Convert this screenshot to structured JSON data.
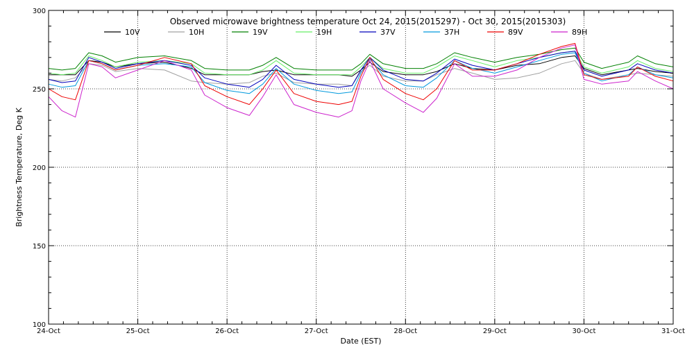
{
  "chart_data": {
    "type": "line",
    "title": "Observed microwave brightness temperature Oct 24, 2015(2015297) - Oct 30, 2015(2015303)",
    "xlabel": "Date (EST)",
    "ylabel": "Brightness Temperature, Deg K",
    "xlim": [
      0,
      7
    ],
    "ylim": [
      100,
      300
    ],
    "x_ticks": [
      {
        "value": 0,
        "label": "24-Oct"
      },
      {
        "value": 1,
        "label": "25-Oct"
      },
      {
        "value": 2,
        "label": "26-Oct"
      },
      {
        "value": 3,
        "label": "27-Oct"
      },
      {
        "value": 4,
        "label": "28-Oct"
      },
      {
        "value": 5,
        "label": "29-Oct"
      },
      {
        "value": 6,
        "label": "30-Oct"
      },
      {
        "value": 7,
        "label": "31-Oct"
      }
    ],
    "y_ticks": [
      {
        "value": 100,
        "label": "100"
      },
      {
        "value": 150,
        "label": "150"
      },
      {
        "value": 200,
        "label": "200"
      },
      {
        "value": 250,
        "label": "250"
      },
      {
        "value": 300,
        "label": "300"
      }
    ],
    "grid": true,
    "legend_position": "top",
    "x": [
      0,
      0.15,
      0.3,
      0.45,
      0.6,
      0.75,
      1.0,
      1.3,
      1.6,
      1.75,
      2.0,
      2.25,
      2.4,
      2.55,
      2.75,
      3.0,
      3.25,
      3.4,
      3.5,
      3.6,
      3.75,
      4.0,
      4.2,
      4.35,
      4.55,
      4.75,
      5.0,
      5.25,
      5.5,
      5.75,
      5.9,
      6.0,
      6.2,
      6.5,
      6.6,
      6.8,
      7.0
    ],
    "series": [
      {
        "name": "10V",
        "color": "#000000",
        "values": [
          259,
          259,
          259,
          268,
          267,
          264,
          266,
          267,
          263,
          259,
          259,
          259,
          261,
          262,
          259,
          259,
          259,
          258,
          262,
          267,
          261,
          259,
          259,
          261,
          266,
          263,
          262,
          265,
          266,
          270,
          271,
          263,
          259,
          262,
          263,
          261,
          260
        ]
      },
      {
        "name": "10H",
        "color": "#a0a0a0",
        "values": [
          256,
          255,
          257,
          266,
          265,
          261,
          263,
          262,
          255,
          254,
          253,
          254,
          258,
          260,
          254,
          253,
          253,
          252,
          261,
          265,
          258,
          255,
          255,
          259,
          263,
          260,
          256,
          257,
          260,
          266,
          268,
          260,
          256,
          259,
          260,
          259,
          258
        ]
      },
      {
        "name": "19V",
        "color": "#008000",
        "values": [
          263,
          262,
          263,
          273,
          271,
          267,
          270,
          271,
          268,
          263,
          262,
          262,
          265,
          270,
          263,
          262,
          262,
          262,
          266,
          272,
          266,
          263,
          263,
          266,
          273,
          270,
          267,
          270,
          272,
          275,
          276,
          267,
          263,
          267,
          271,
          266,
          264
        ]
      },
      {
        "name": "19H",
        "color": "#66ee66",
        "values": [
          260,
          259,
          260,
          271,
          268,
          264,
          267,
          268,
          266,
          260,
          259,
          259,
          262,
          268,
          260,
          259,
          259,
          259,
          264,
          270,
          263,
          260,
          260,
          264,
          271,
          268,
          264,
          268,
          270,
          273,
          274,
          264,
          260,
          264,
          268,
          263,
          261
        ]
      },
      {
        "name": "37V",
        "color": "#0000bb",
        "values": [
          256,
          254,
          255,
          270,
          267,
          263,
          266,
          268,
          265,
          257,
          253,
          251,
          256,
          265,
          256,
          253,
          251,
          252,
          262,
          270,
          262,
          256,
          255,
          260,
          269,
          265,
          262,
          266,
          270,
          273,
          274,
          262,
          258,
          262,
          266,
          262,
          260
        ]
      },
      {
        "name": "37H",
        "color": "#0099dd",
        "values": [
          253,
          251,
          252,
          268,
          266,
          262,
          265,
          266,
          264,
          254,
          249,
          247,
          253,
          263,
          253,
          249,
          247,
          248,
          260,
          269,
          259,
          252,
          251,
          257,
          268,
          263,
          260,
          264,
          268,
          272,
          273,
          260,
          255,
          259,
          264,
          259,
          257
        ]
      },
      {
        "name": "89V",
        "color": "#ee0000",
        "values": [
          250,
          245,
          243,
          268,
          266,
          262,
          265,
          270,
          266,
          252,
          245,
          240,
          250,
          262,
          247,
          242,
          240,
          242,
          258,
          270,
          256,
          247,
          243,
          250,
          268,
          262,
          262,
          266,
          272,
          277,
          279,
          259,
          256,
          258,
          264,
          258,
          255
        ]
      },
      {
        "name": "89H",
        "color": "#cc22cc",
        "values": [
          245,
          236,
          232,
          266,
          264,
          257,
          262,
          268,
          262,
          246,
          238,
          233,
          245,
          259,
          240,
          235,
          232,
          236,
          255,
          268,
          250,
          241,
          235,
          244,
          266,
          258,
          258,
          262,
          270,
          276,
          278,
          256,
          253,
          255,
          261,
          255,
          250
        ]
      }
    ]
  }
}
